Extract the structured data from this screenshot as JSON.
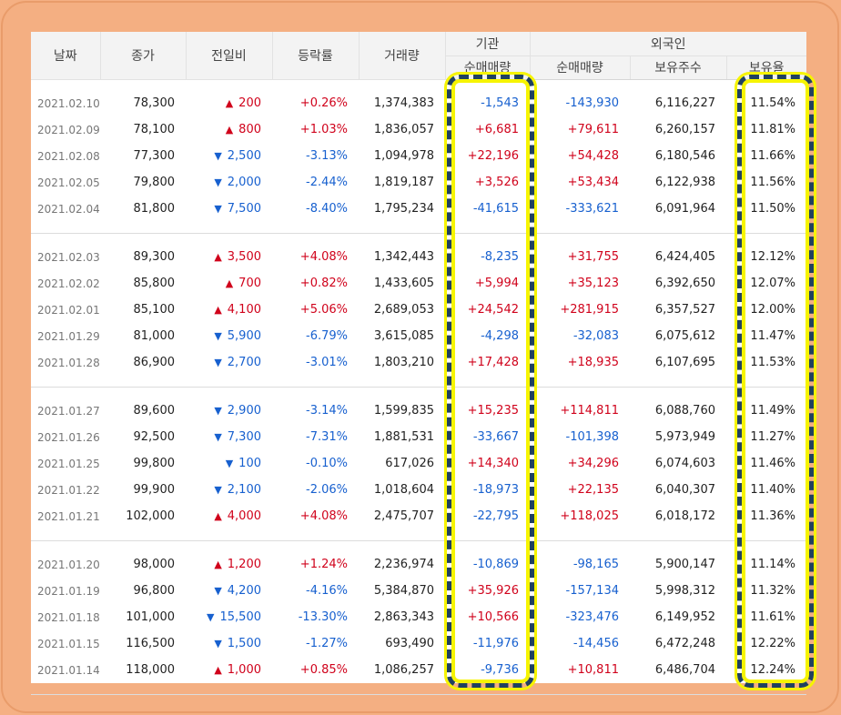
{
  "headers": {
    "date": "날짜",
    "close": "종가",
    "change": "전일비",
    "rate": "등락률",
    "volume": "거래량",
    "inst_group": "기관",
    "inst_net": "순매매량",
    "foreign_group": "외국인",
    "foreign_net": "순매매량",
    "foreign_hold": "보유주수",
    "foreign_ratio": "보유율"
  },
  "groups": [
    [
      {
        "date": "2021.02.10",
        "close": "78,300",
        "dir": "up",
        "change": "200",
        "rate": "+0.26%",
        "volume": "1,374,383",
        "inst": "-1,543",
        "foreign": "-143,930",
        "hold": "6,116,227",
        "ratio": "11.54%"
      },
      {
        "date": "2021.02.09",
        "close": "78,100",
        "dir": "up",
        "change": "800",
        "rate": "+1.03%",
        "volume": "1,836,057",
        "inst": "+6,681",
        "foreign": "+79,611",
        "hold": "6,260,157",
        "ratio": "11.81%"
      },
      {
        "date": "2021.02.08",
        "close": "77,300",
        "dir": "down",
        "change": "2,500",
        "rate": "-3.13%",
        "volume": "1,094,978",
        "inst": "+22,196",
        "foreign": "+54,428",
        "hold": "6,180,546",
        "ratio": "11.66%"
      },
      {
        "date": "2021.02.05",
        "close": "79,800",
        "dir": "down",
        "change": "2,000",
        "rate": "-2.44%",
        "volume": "1,819,187",
        "inst": "+3,526",
        "foreign": "+53,434",
        "hold": "6,122,938",
        "ratio": "11.56%"
      },
      {
        "date": "2021.02.04",
        "close": "81,800",
        "dir": "down",
        "change": "7,500",
        "rate": "-8.40%",
        "volume": "1,795,234",
        "inst": "-41,615",
        "foreign": "-333,621",
        "hold": "6,091,964",
        "ratio": "11.50%"
      }
    ],
    [
      {
        "date": "2021.02.03",
        "close": "89,300",
        "dir": "up",
        "change": "3,500",
        "rate": "+4.08%",
        "volume": "1,342,443",
        "inst": "-8,235",
        "foreign": "+31,755",
        "hold": "6,424,405",
        "ratio": "12.12%"
      },
      {
        "date": "2021.02.02",
        "close": "85,800",
        "dir": "up",
        "change": "700",
        "rate": "+0.82%",
        "volume": "1,433,605",
        "inst": "+5,994",
        "foreign": "+35,123",
        "hold": "6,392,650",
        "ratio": "12.07%"
      },
      {
        "date": "2021.02.01",
        "close": "85,100",
        "dir": "up",
        "change": "4,100",
        "rate": "+5.06%",
        "volume": "2,689,053",
        "inst": "+24,542",
        "foreign": "+281,915",
        "hold": "6,357,527",
        "ratio": "12.00%"
      },
      {
        "date": "2021.01.29",
        "close": "81,000",
        "dir": "down",
        "change": "5,900",
        "rate": "-6.79%",
        "volume": "3,615,085",
        "inst": "-4,298",
        "foreign": "-32,083",
        "hold": "6,075,612",
        "ratio": "11.47%"
      },
      {
        "date": "2021.01.28",
        "close": "86,900",
        "dir": "down",
        "change": "2,700",
        "rate": "-3.01%",
        "volume": "1,803,210",
        "inst": "+17,428",
        "foreign": "+18,935",
        "hold": "6,107,695",
        "ratio": "11.53%"
      }
    ],
    [
      {
        "date": "2021.01.27",
        "close": "89,600",
        "dir": "down",
        "change": "2,900",
        "rate": "-3.14%",
        "volume": "1,599,835",
        "inst": "+15,235",
        "foreign": "+114,811",
        "hold": "6,088,760",
        "ratio": "11.49%"
      },
      {
        "date": "2021.01.26",
        "close": "92,500",
        "dir": "down",
        "change": "7,300",
        "rate": "-7.31%",
        "volume": "1,881,531",
        "inst": "-33,667",
        "foreign": "-101,398",
        "hold": "5,973,949",
        "ratio": "11.27%"
      },
      {
        "date": "2021.01.25",
        "close": "99,800",
        "dir": "down",
        "change": "100",
        "rate": "-0.10%",
        "volume": "617,026",
        "inst": "+14,340",
        "foreign": "+34,296",
        "hold": "6,074,603",
        "ratio": "11.46%"
      },
      {
        "date": "2021.01.22",
        "close": "99,900",
        "dir": "down",
        "change": "2,100",
        "rate": "-2.06%",
        "volume": "1,018,604",
        "inst": "-18,973",
        "foreign": "+22,135",
        "hold": "6,040,307",
        "ratio": "11.40%"
      },
      {
        "date": "2021.01.21",
        "close": "102,000",
        "dir": "up",
        "change": "4,000",
        "rate": "+4.08%",
        "volume": "2,475,707",
        "inst": "-22,795",
        "foreign": "+118,025",
        "hold": "6,018,172",
        "ratio": "11.36%"
      }
    ],
    [
      {
        "date": "2021.01.20",
        "close": "98,000",
        "dir": "up",
        "change": "1,200",
        "rate": "+1.24%",
        "volume": "2,236,974",
        "inst": "-10,869",
        "foreign": "-98,165",
        "hold": "5,900,147",
        "ratio": "11.14%"
      },
      {
        "date": "2021.01.19",
        "close": "96,800",
        "dir": "down",
        "change": "4,200",
        "rate": "-4.16%",
        "volume": "5,384,870",
        "inst": "+35,926",
        "foreign": "-157,134",
        "hold": "5,998,312",
        "ratio": "11.32%"
      },
      {
        "date": "2021.01.18",
        "close": "101,000",
        "dir": "down",
        "change": "15,500",
        "rate": "-13.30%",
        "volume": "2,863,343",
        "inst": "+10,566",
        "foreign": "-323,476",
        "hold": "6,149,952",
        "ratio": "11.61%"
      },
      {
        "date": "2021.01.15",
        "close": "116,500",
        "dir": "down",
        "change": "1,500",
        "rate": "-1.27%",
        "volume": "693,490",
        "inst": "-11,976",
        "foreign": "-14,456",
        "hold": "6,472,248",
        "ratio": "12.22%"
      },
      {
        "date": "2021.01.14",
        "close": "118,000",
        "dir": "up",
        "change": "1,000",
        "rate": "+0.85%",
        "volume": "1,086,257",
        "inst": "-9,736",
        "foreign": "+10,811",
        "hold": "6,486,704",
        "ratio": "12.24%"
      }
    ]
  ],
  "colors": {
    "background": "#f5b083",
    "up": "#d0021b",
    "down": "#1760cf",
    "highlight_dash": "#20415f",
    "highlight_glow": "#f6f400"
  },
  "icons": {
    "up": "triangle-up-icon",
    "down": "triangle-down-icon"
  }
}
